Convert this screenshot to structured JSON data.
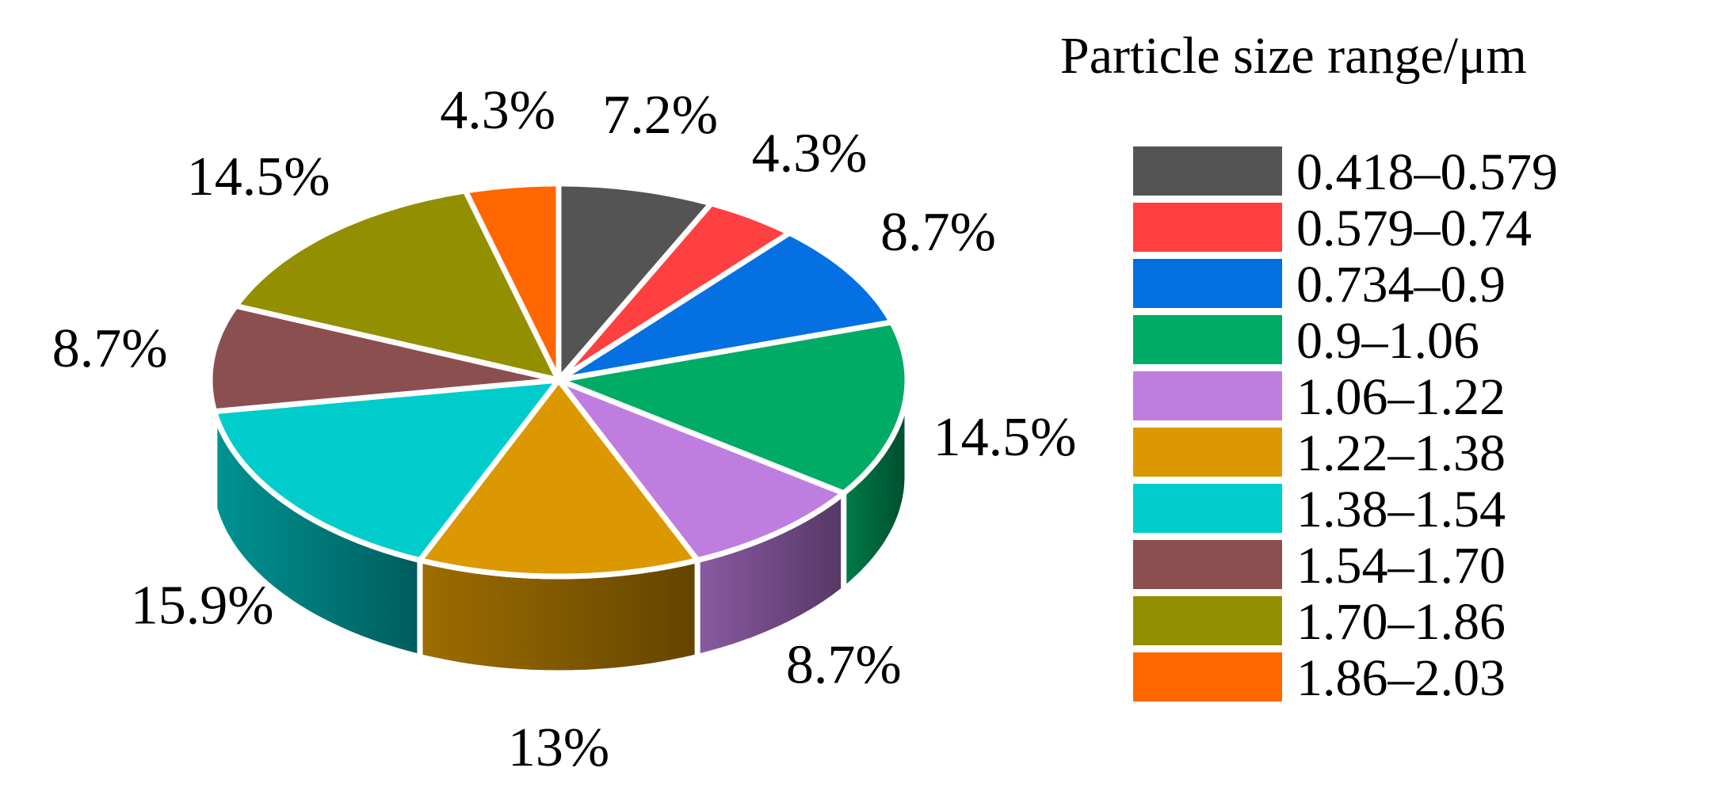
{
  "chart_data": {
    "type": "pie",
    "style": "3d-exploded-edges",
    "legend_title": "Particle size range/μm",
    "legend_position": "right",
    "slices": [
      {
        "category": "0.418–0.579",
        "value": 7.2,
        "label": "7.2%",
        "color": "#545454"
      },
      {
        "category": "0.579–0.74",
        "value": 4.3,
        "label": "4.3%",
        "color": "#ff4040"
      },
      {
        "category": "0.734–0.9",
        "value": 8.7,
        "label": "8.7%",
        "color": "#0470e2"
      },
      {
        "category": "0.9–1.06",
        "value": 14.5,
        "label": "14.5%",
        "color": "#00ab66"
      },
      {
        "category": "1.06–1.22",
        "value": 8.7,
        "label": "8.7%",
        "color": "#c07de0"
      },
      {
        "category": "1.22–1.38",
        "value": 13,
        "label": "13%",
        "color": "#dc9800"
      },
      {
        "category": "1.38–1.54",
        "value": 15.9,
        "label": "15.9%",
        "color": "#00cccc"
      },
      {
        "category": "1.54–1.70",
        "value": 8.7,
        "label": "8.7%",
        "color": "#8b4f4f"
      },
      {
        "category": "1.70–1.86",
        "value": 14.5,
        "label": "14.5%",
        "color": "#929000"
      },
      {
        "category": "1.86–2.03",
        "value": 4.3,
        "label": "4.3%",
        "color": "#ff6600"
      }
    ]
  }
}
